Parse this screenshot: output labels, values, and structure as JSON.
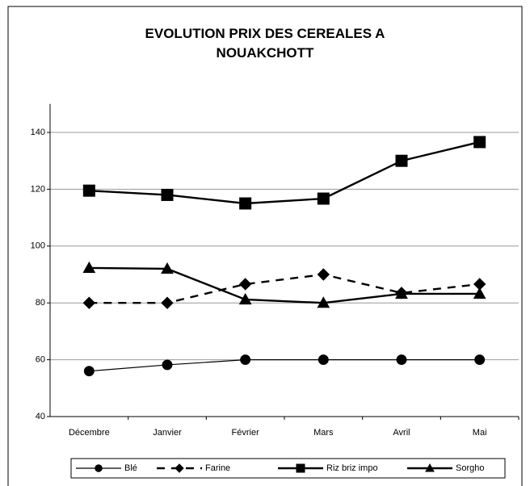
{
  "chart_data": {
    "type": "line",
    "title": "EVOLUTION PRIX DES CEREALES A NOUAKCHOTT",
    "categories": [
      "Décembre",
      "Janvier",
      "Février",
      "Mars",
      "Avril",
      "Mai"
    ],
    "series": [
      {
        "name": "Blé",
        "color": "#000000",
        "marker": "circle",
        "dashed": false,
        "values": [
          56,
          58.2,
          60,
          60,
          60,
          60
        ]
      },
      {
        "name": "Farine",
        "color": "#000000",
        "marker": "diamond",
        "dashed": true,
        "values": [
          80,
          80,
          86.6,
          90,
          83.5,
          86.6
        ]
      },
      {
        "name": "Riz briz impo",
        "color": "#000000",
        "marker": "square",
        "dashed": false,
        "values": [
          119.5,
          118,
          115,
          116.7,
          130,
          136.6
        ]
      },
      {
        "name": "Sorgho",
        "color": "#000000",
        "marker": "triangle",
        "dashed": false,
        "values": [
          92.3,
          92,
          81.2,
          80,
          83.2,
          83.2
        ]
      }
    ],
    "ylim": [
      40,
      150
    ],
    "yticks": [
      40,
      60,
      80,
      100,
      120,
      140
    ],
    "grid": true,
    "legend": "bottom"
  }
}
